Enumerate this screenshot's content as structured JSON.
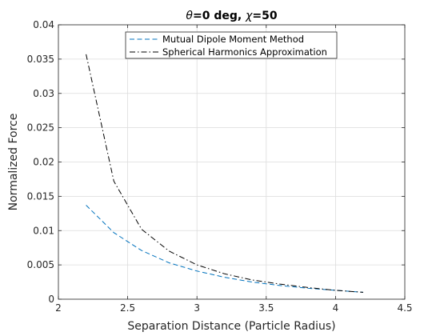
{
  "chart_data": {
    "type": "line",
    "title_parts": [
      "θ",
      "=0 deg, ",
      "χ",
      "=50"
    ],
    "xlabel": "Separation Distance (Particle Radius)",
    "ylabel": "Normalized Force",
    "xlim": [
      2,
      4.5
    ],
    "ylim": [
      0,
      0.04
    ],
    "xticks": [
      2,
      2.5,
      3,
      3.5,
      4,
      4.5
    ],
    "xtick_labels": [
      "2",
      "2.5",
      "3",
      "3.5",
      "4",
      "4.5"
    ],
    "yticks": [
      0,
      0.005,
      0.01,
      0.015,
      0.02,
      0.025,
      0.03,
      0.035,
      0.04
    ],
    "ytick_labels": [
      "0",
      "0.005",
      "0.01",
      "0.015",
      "0.02",
      "0.025",
      "0.03",
      "0.035",
      "0.04"
    ],
    "grid": true,
    "legend_position": "top-center",
    "series": [
      {
        "name": "Mutual Dipole Moment Method",
        "color": "#0072BD",
        "dash": "dashed",
        "x": [
          2.2,
          2.4,
          2.6,
          2.8,
          3.0,
          3.2,
          3.4,
          3.6,
          3.8,
          4.0,
          4.2
        ],
        "y": [
          0.0137,
          0.0097,
          0.0071,
          0.0053,
          0.0041,
          0.0032,
          0.0025,
          0.002,
          0.0016,
          0.0013,
          0.001
        ]
      },
      {
        "name": "Spherical Harmonics Approximation",
        "color": "#000000",
        "dash": "dashdot",
        "x": [
          2.2,
          2.4,
          2.6,
          2.8,
          3.0,
          3.2,
          3.4,
          3.6,
          3.8,
          4.0,
          4.2
        ],
        "y": [
          0.0357,
          0.0172,
          0.0102,
          0.007,
          0.005,
          0.0037,
          0.0028,
          0.0022,
          0.0017,
          0.0013,
          0.001
        ]
      }
    ]
  }
}
